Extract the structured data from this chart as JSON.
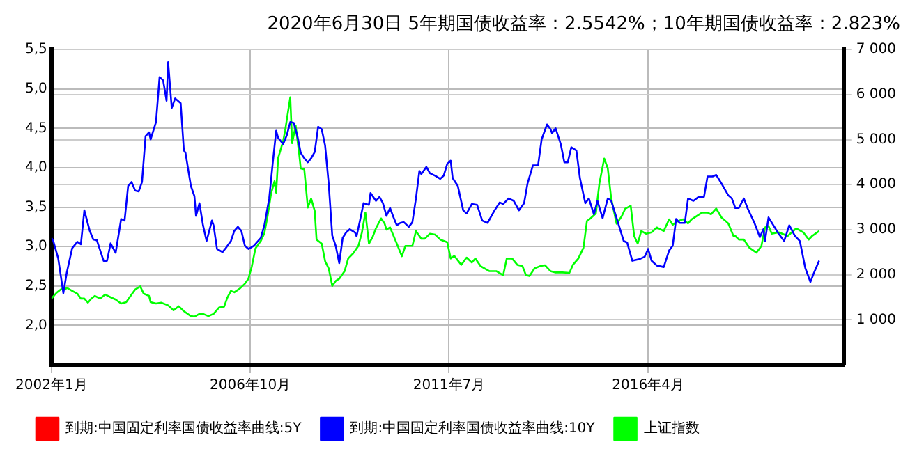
{
  "chart_data": {
    "type": "line",
    "title": "2020年6月30日 5年期国债收益率：2.5542%；10年期国债收益率：2.823%",
    "xlim": [
      "2002-01-01",
      "2020-12-01"
    ],
    "xticks": [
      {
        "value": "2002-01-01",
        "label": "2002年1月"
      },
      {
        "value": "2006-10-01",
        "label": "2006年10月"
      },
      {
        "value": "2011-07-01",
        "label": "2011年7月"
      },
      {
        "value": "2016-04-01",
        "label": "2016年4月"
      }
    ],
    "ylim": [
      1.5,
      5.5
    ],
    "yticks": [
      {
        "value": 2,
        "label": "2,0"
      },
      {
        "value": 2.5,
        "label": "2,5"
      },
      {
        "value": 3,
        "label": "3,0"
      },
      {
        "value": 3.5,
        "label": "3,5"
      },
      {
        "value": 4,
        "label": "4,0"
      },
      {
        "value": 4.5,
        "label": "4,5"
      },
      {
        "value": 5,
        "label": "5,0"
      },
      {
        "value": 5.5,
        "label": "5,5"
      }
    ],
    "y2lim": [
      0,
      7000
    ],
    "y2ticks": [
      {
        "value": 1000,
        "label": "1 000"
      },
      {
        "value": 2000,
        "label": "2 000"
      },
      {
        "value": 3000,
        "label": "3 000"
      },
      {
        "value": 4000,
        "label": "4 000"
      },
      {
        "value": 5000,
        "label": "5 000"
      },
      {
        "value": 6000,
        "label": "6 000"
      },
      {
        "value": 7000,
        "label": "7 000"
      }
    ],
    "grid": true,
    "legend": "bottom",
    "marker": "none",
    "line_style": "solid",
    "series": [
      {
        "name": "到期:中国固定利率国债收益率曲线:5Y",
        "color": "#ff0000"
      },
      {
        "name": "到期:中国固定利率国债收益率曲线:10Y",
        "color": "#0000ff",
        "x": [
          "2002-01-01",
          "2002-01-15",
          "2002-03-01",
          "2002-04-15",
          "2002-05-15",
          "2002-07-01",
          "2002-08-15",
          "2002-09-15",
          "2002-10-15",
          "2002-12-01",
          "2003-01-01",
          "2003-02-01",
          "2003-04-01",
          "2003-05-01",
          "2003-06-01",
          "2003-07-15",
          "2003-09-01",
          "2003-10-01",
          "2003-11-01",
          "2003-12-01",
          "2004-01-01",
          "2004-02-01",
          "2004-03-01",
          "2004-04-01",
          "2004-05-01",
          "2004-05-15",
          "2004-07-01",
          "2004-08-01",
          "2004-09-01",
          "2004-10-01",
          "2004-10-15",
          "2004-11-15",
          "2004-12-15",
          "2005-02-01",
          "2005-03-01",
          "2005-03-15",
          "2005-05-01",
          "2005-06-01",
          "2005-06-15",
          "2005-07-15",
          "2005-08-15",
          "2005-09-15",
          "2005-11-01",
          "2005-11-15",
          "2005-12-15",
          "2006-02-01",
          "2006-03-01",
          "2006-04-15",
          "2006-05-15",
          "2006-06-15",
          "2006-07-15",
          "2006-08-15",
          "2006-09-15",
          "2006-11-01",
          "2007-01-01",
          "2007-02-01",
          "2007-03-15",
          "2007-04-15",
          "2007-05-15",
          "2007-06-01",
          "2007-07-15",
          "2007-08-15",
          "2007-09-15",
          "2007-10-15",
          "2007-11-15",
          "2007-12-15",
          "2008-01-15",
          "2008-02-15",
          "2008-03-15",
          "2008-04-15",
          "2008-05-15",
          "2008-06-15",
          "2008-07-15",
          "2008-08-15",
          "2008-09-15",
          "2008-10-15",
          "2008-11-15",
          "2008-12-15",
          "2009-01-15",
          "2009-02-15",
          "2009-04-01",
          "2009-04-15",
          "2009-05-15",
          "2009-06-15",
          "2009-08-01",
          "2009-08-15",
          "2009-10-01",
          "2009-11-01",
          "2009-12-01",
          "2010-01-01",
          "2010-02-01",
          "2010-03-01",
          "2010-04-01",
          "2010-05-01",
          "2010-06-01",
          "2010-07-15",
          "2010-08-15",
          "2010-09-15",
          "2010-10-15",
          "2010-11-01",
          "2010-12-15",
          "2011-01-15",
          "2011-03-01",
          "2011-04-15",
          "2011-05-15",
          "2011-06-15",
          "2011-07-15",
          "2011-08-01",
          "2011-09-15",
          "2011-11-01",
          "2011-12-01",
          "2012-01-15",
          "2012-03-01",
          "2012-04-15",
          "2012-06-01",
          "2012-08-01",
          "2012-09-15",
          "2012-10-15",
          "2012-12-01",
          "2013-01-15",
          "2013-03-01",
          "2013-04-15",
          "2013-05-15",
          "2013-07-01",
          "2013-08-15",
          "2013-09-15",
          "2013-11-01",
          "2013-12-01",
          "2013-12-15",
          "2014-01-15",
          "2014-03-01",
          "2014-04-01",
          "2014-05-01",
          "2014-06-01",
          "2014-07-15",
          "2014-08-15",
          "2014-10-01",
          "2014-11-01",
          "2014-12-15",
          "2015-01-15",
          "2015-03-01",
          "2015-04-15",
          "2015-05-15",
          "2015-07-01",
          "2015-09-01",
          "2015-10-01",
          "2015-11-15",
          "2016-01-15",
          "2016-03-01",
          "2016-04-01",
          "2016-05-01",
          "2016-06-15",
          "2016-08-15",
          "2016-10-01",
          "2016-11-01",
          "2016-12-01",
          "2017-01-01",
          "2017-02-15",
          "2017-03-15",
          "2017-05-01",
          "2017-06-15",
          "2017-08-01",
          "2017-09-01",
          "2017-10-15",
          "2017-11-15",
          "2018-01-01",
          "2018-03-01",
          "2018-04-01",
          "2018-05-01",
          "2018-06-01",
          "2018-07-15",
          "2018-08-15",
          "2018-10-15",
          "2018-12-01",
          "2019-01-01",
          "2019-01-15",
          "2019-02-15",
          "2019-04-15",
          "2019-05-15",
          "2019-07-01",
          "2019-08-15",
          "2019-10-01",
          "2019-11-15",
          "2020-01-01",
          "2020-02-15",
          "2020-03-15",
          "2020-05-01"
        ],
        "values": [
          3.11,
          3.08,
          2.85,
          2.41,
          2.67,
          2.98,
          3.06,
          3.03,
          3.46,
          3.2,
          3.09,
          3.08,
          2.82,
          2.82,
          3.04,
          2.92,
          3.35,
          3.33,
          3.77,
          3.82,
          3.71,
          3.7,
          3.82,
          4.4,
          4.45,
          4.36,
          4.58,
          5.15,
          5.11,
          4.85,
          5.34,
          4.76,
          4.88,
          4.82,
          4.22,
          4.19,
          3.77,
          3.64,
          3.39,
          3.55,
          3.27,
          3.07,
          3.33,
          3.27,
          2.97,
          2.93,
          2.98,
          3.07,
          3.2,
          3.25,
          3.2,
          3.01,
          2.97,
          3.01,
          3.11,
          3.27,
          3.61,
          4.06,
          4.47,
          4.38,
          4.3,
          4.41,
          4.58,
          4.57,
          4.41,
          4.19,
          4.12,
          4.07,
          4.12,
          4.2,
          4.52,
          4.49,
          4.28,
          3.8,
          3.14,
          3.01,
          2.79,
          3.11,
          3.18,
          3.22,
          3.18,
          3.13,
          3.33,
          3.55,
          3.53,
          3.68,
          3.58,
          3.63,
          3.55,
          3.39,
          3.49,
          3.38,
          3.27,
          3.3,
          3.31,
          3.25,
          3.31,
          3.61,
          3.96,
          3.92,
          4.01,
          3.93,
          3.9,
          3.86,
          3.9,
          4.05,
          4.09,
          3.87,
          3.77,
          3.46,
          3.42,
          3.54,
          3.53,
          3.33,
          3.3,
          3.46,
          3.56,
          3.54,
          3.61,
          3.58,
          3.46,
          3.55,
          3.8,
          4.03,
          4.03,
          4.36,
          4.55,
          4.49,
          4.44,
          4.5,
          4.3,
          4.07,
          4.07,
          4.26,
          4.22,
          3.87,
          3.55,
          3.61,
          3.41,
          3.58,
          3.36,
          3.61,
          3.58,
          3.36,
          3.07,
          3.05,
          2.82,
          2.84,
          2.87,
          2.97,
          2.82,
          2.76,
          2.74,
          2.95,
          3.01,
          3.35,
          3.3,
          3.3,
          3.61,
          3.58,
          3.63,
          3.63,
          3.89,
          3.89,
          3.91,
          3.8,
          3.65,
          3.61,
          3.49,
          3.49,
          3.61,
          3.49,
          3.3,
          3.12,
          3.22,
          3.07,
          3.37,
          3.23,
          3.16,
          3.07,
          3.27,
          3.14,
          3.07,
          2.73,
          2.55,
          2.66,
          2.82
        ]
      },
      {
        "name": "上证指数",
        "color": "#00ff00",
        "axis": "y2",
        "x": [
          "2002-01-01",
          "2002-02-15",
          "2002-04-01",
          "2002-05-01",
          "2002-05-15",
          "2002-07-01",
          "2002-08-15",
          "2002-09-15",
          "2002-10-15",
          "2002-11-15",
          "2002-12-15",
          "2003-01-15",
          "2003-03-01",
          "2003-04-15",
          "2003-06-01",
          "2003-07-15",
          "2003-09-01",
          "2003-10-15",
          "2003-12-01",
          "2004-01-01",
          "2004-02-15",
          "2004-03-15",
          "2004-05-01",
          "2004-05-15",
          "2004-07-01",
          "2004-08-15",
          "2004-10-15",
          "2004-12-01",
          "2005-01-15",
          "2005-03-01",
          "2005-05-01",
          "2005-06-01",
          "2005-07-15",
          "2005-08-15",
          "2005-10-01",
          "2005-11-15",
          "2006-01-01",
          "2006-02-15",
          "2006-03-15",
          "2006-04-15",
          "2006-05-15",
          "2006-07-01",
          "2006-08-15",
          "2006-09-15",
          "2006-10-15",
          "2006-11-15",
          "2007-01-01",
          "2007-02-01",
          "2007-03-01",
          "2007-04-01",
          "2007-05-01",
          "2007-05-15",
          "2007-06-01",
          "2007-07-15",
          "2007-08-01",
          "2007-09-15",
          "2007-10-01",
          "2007-11-01",
          "2007-12-01",
          "2007-12-15",
          "2008-01-15",
          "2008-02-15",
          "2008-03-15",
          "2008-04-15",
          "2008-05-01",
          "2008-06-15",
          "2008-07-15",
          "2008-08-15",
          "2008-09-15",
          "2008-10-15",
          "2008-11-15",
          "2009-01-01",
          "2009-02-01",
          "2009-03-15",
          "2009-05-01",
          "2009-06-01",
          "2009-07-01",
          "2009-08-01",
          "2009-09-01",
          "2009-10-01",
          "2009-11-15",
          "2009-12-15",
          "2010-01-01",
          "2010-02-01",
          "2010-04-01",
          "2010-05-15",
          "2010-06-15",
          "2010-08-15",
          "2010-09-15",
          "2010-11-01",
          "2010-12-01",
          "2011-01-15",
          "2011-03-01",
          "2011-04-15",
          "2011-06-15",
          "2011-07-15",
          "2011-08-15",
          "2011-10-15",
          "2011-12-01",
          "2012-01-15",
          "2012-02-15",
          "2012-04-01",
          "2012-06-15",
          "2012-08-15",
          "2012-10-15",
          "2012-11-15",
          "2013-01-01",
          "2013-02-15",
          "2013-04-01",
          "2013-05-01",
          "2013-06-01",
          "2013-07-15",
          "2013-09-01",
          "2013-10-15",
          "2013-12-01",
          "2014-01-15",
          "2014-03-15",
          "2014-05-15",
          "2014-06-15",
          "2014-08-01",
          "2014-09-15",
          "2014-10-15",
          "2014-11-15",
          "2015-01-01",
          "2015-02-01",
          "2015-03-15",
          "2015-04-15",
          "2015-05-15",
          "2015-07-01",
          "2015-08-15",
          "2015-09-15",
          "2015-11-01",
          "2015-12-01",
          "2016-01-01",
          "2016-02-01",
          "2016-03-15",
          "2016-05-01",
          "2016-06-15",
          "2016-08-15",
          "2016-10-01",
          "2016-11-01",
          "2016-12-15",
          "2017-02-01",
          "2017-03-15",
          "2017-04-15",
          "2017-07-15",
          "2017-09-01",
          "2017-10-01",
          "2017-11-15",
          "2018-01-01",
          "2018-03-01",
          "2018-04-15",
          "2018-05-01",
          "2018-06-01",
          "2018-07-15",
          "2018-09-01",
          "2018-11-01",
          "2018-12-15",
          "2019-01-15",
          "2019-02-15",
          "2019-03-15",
          "2019-05-15",
          "2019-08-01",
          "2019-10-15",
          "2019-12-15",
          "2020-02-01",
          "2020-03-01",
          "2020-05-01"
        ],
        "values": [
          1470,
          1600,
          1690,
          1670,
          1710,
          1640,
          1580,
          1470,
          1470,
          1380,
          1470,
          1530,
          1470,
          1560,
          1500,
          1450,
          1360,
          1390,
          1560,
          1670,
          1740,
          1580,
          1530,
          1390,
          1360,
          1380,
          1320,
          1210,
          1300,
          1190,
          1080,
          1070,
          1130,
          1130,
          1080,
          1130,
          1270,
          1290,
          1490,
          1640,
          1610,
          1690,
          1800,
          1910,
          2190,
          2580,
          2750,
          2920,
          3300,
          3810,
          4080,
          3820,
          4590,
          4970,
          5200,
          5940,
          4920,
          5310,
          4700,
          4360,
          4340,
          3490,
          3690,
          3420,
          2780,
          2690,
          2300,
          2140,
          1750,
          1860,
          1910,
          2080,
          2360,
          2470,
          2640,
          2940,
          3380,
          2690,
          2830,
          3030,
          3250,
          3140,
          3000,
          3050,
          2690,
          2410,
          2640,
          2640,
          2970,
          2800,
          2800,
          2910,
          2890,
          2780,
          2720,
          2360,
          2420,
          2220,
          2380,
          2270,
          2360,
          2190,
          2080,
          2080,
          1990,
          2360,
          2360,
          2220,
          2190,
          1990,
          1970,
          2140,
          2190,
          2210,
          2080,
          2050,
          2050,
          2040,
          2220,
          2360,
          2600,
          3190,
          3250,
          3360,
          4030,
          4580,
          4360,
          3690,
          3130,
          3300,
          3470,
          3530,
          2860,
          2690,
          2970,
          2910,
          2940,
          3050,
          2970,
          3230,
          3110,
          3190,
          3230,
          3140,
          3230,
          3380,
          3380,
          3340,
          3470,
          3270,
          3140,
          2860,
          2860,
          2780,
          2780,
          2600,
          2490,
          2640,
          3050,
          3080,
          2910,
          2940,
          2860,
          3030,
          2940,
          2780,
          2860,
          2970
        ]
      }
    ]
  }
}
